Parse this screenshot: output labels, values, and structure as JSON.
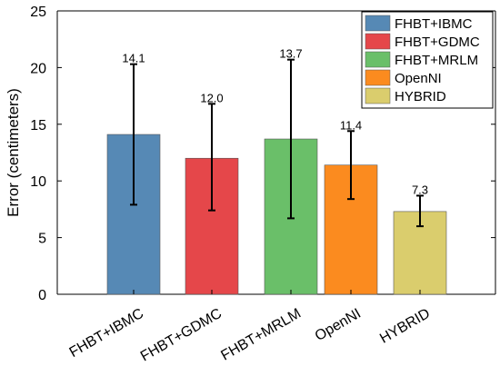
{
  "chart_data": {
    "type": "bar",
    "title": "",
    "xlabel": "",
    "ylabel": "Error (centimeters)",
    "ylim": [
      0,
      25
    ],
    "yticks": [
      0,
      5,
      10,
      15,
      20,
      25
    ],
    "categories": [
      "FHBT+IBMC",
      "FHBT+GDMC",
      "FHBT+MRLM",
      "OpenNI",
      "HYBRID"
    ],
    "values": [
      14.1,
      12.0,
      13.7,
      11.4,
      7.3
    ],
    "value_labels": [
      "14.1",
      "12.0",
      "13.7",
      "11.4",
      "7.3"
    ],
    "error_low": [
      7.9,
      7.4,
      6.7,
      8.4,
      6.0
    ],
    "error_high": [
      20.3,
      16.8,
      20.7,
      14.4,
      8.7
    ],
    "colors": [
      "#5689b5",
      "#e5474a",
      "#6abf69",
      "#fb8b1f",
      "#dacd6d"
    ],
    "legend": {
      "placement": "top-right",
      "entries": [
        "FHBT+IBMC",
        "FHBT+GDMC",
        "FHBT+MRLM",
        "OpenNI",
        "HYBRID"
      ]
    },
    "grid": false,
    "tick_label_rotation": 30
  }
}
